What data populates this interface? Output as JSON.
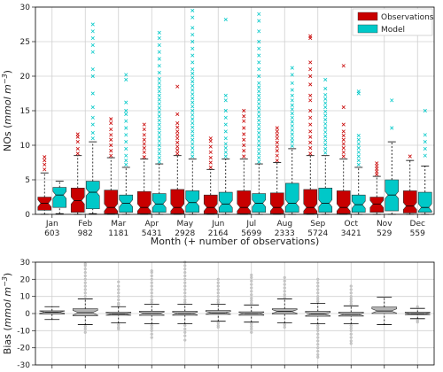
{
  "chart_data": [
    {
      "type": "box",
      "xlabel": "Month (+ number of observations)",
      "ylabel": "NOs (mmol m^-3)",
      "ylim": [
        0,
        30
      ],
      "yticks": [
        0,
        5,
        10,
        15,
        20,
        25,
        30
      ],
      "grid": true,
      "legend": "top-right",
      "categories": [
        "Jan",
        "Feb",
        "Mar",
        "Apr",
        "May",
        "Jun",
        "Jul",
        "Aug",
        "Sep",
        "Oct",
        "Nov",
        "Dec"
      ],
      "counts": [
        "603",
        "982",
        "1181",
        "5431",
        "2928",
        "2164",
        "5699",
        "2333",
        "5724",
        "3421",
        "529",
        "559"
      ],
      "series": [
        {
          "name": "Observations",
          "color": "#c80000",
          "boxes": [
            {
              "whislo": 0,
              "q1": 0.6,
              "med": 1.6,
              "q3": 2.5,
              "whishi": 6.0,
              "fliers": [
                6.5,
                7.2,
                7.8,
                8.3
              ]
            },
            {
              "whislo": 0,
              "q1": 0.3,
              "med": 2.0,
              "q3": 3.8,
              "whishi": 8.5,
              "fliers": [
                8.8,
                9.5,
                10.5,
                11.2,
                11.6
              ]
            },
            {
              "whislo": 0,
              "q1": 0.1,
              "med": 1.0,
              "q3": 3.5,
              "whishi": 8.2,
              "fliers": [
                8.5,
                9.2,
                10.0,
                10.8,
                11.5,
                12.3,
                13.2,
                13.8
              ]
            },
            {
              "whislo": 0,
              "q1": 0.1,
              "med": 1.0,
              "q3": 3.3,
              "whishi": 8.0,
              "fliers": [
                8.3,
                9.0,
                9.6,
                10.2,
                10.8,
                11.5,
                12.3,
                13.0
              ]
            },
            {
              "whislo": 0,
              "q1": 0.1,
              "med": 1.0,
              "q3": 3.6,
              "whishi": 8.5,
              "fliers": [
                8.8,
                9.3,
                9.8,
                10.4,
                11.0,
                11.5,
                12.0,
                12.6,
                13.2,
                14.5,
                18.5
              ]
            },
            {
              "whislo": 0,
              "q1": 0.1,
              "med": 1.0,
              "q3": 2.8,
              "whishi": 6.5,
              "fliers": [
                6.8,
                7.5,
                8.2,
                9.0,
                9.8,
                10.6,
                11.0
              ]
            },
            {
              "whislo": 0,
              "q1": 0.1,
              "med": 1.0,
              "q3": 3.4,
              "whishi": 8.0,
              "fliers": [
                8.4,
                9.2,
                10.0,
                10.8,
                11.6,
                12.5,
                13.5,
                14.2,
                15.0
              ]
            },
            {
              "whislo": 0,
              "q1": 0.1,
              "med": 1.0,
              "q3": 3.1,
              "whishi": 7.5,
              "fliers": [
                7.8,
                8.5,
                9.2,
                9.8,
                10.4,
                11.0,
                11.5,
                12.0,
                12.5
              ]
            },
            {
              "whislo": 0,
              "q1": 0.1,
              "med": 1.0,
              "q3": 3.6,
              "whishi": 8.5,
              "fliers": [
                8.8,
                9.6,
                10.4,
                11.2,
                12.0,
                13.0,
                14.0,
                15.0,
                16.5,
                17.2,
                18.8,
                20.0,
                21.0,
                22.0,
                25.5,
                25.8
              ]
            },
            {
              "whislo": 0,
              "q1": 0.1,
              "med": 1.0,
              "q3": 3.4,
              "whishi": 8.0,
              "fliers": [
                8.4,
                9.0,
                9.6,
                10.2,
                10.8,
                11.4,
                12.0,
                13.0,
                15.5,
                21.5
              ]
            },
            {
              "whislo": 0,
              "q1": 0.3,
              "med": 1.5,
              "q3": 2.5,
              "whishi": 5.5,
              "fliers": [
                5.8,
                6.2,
                6.6,
                7.0,
                7.4
              ]
            },
            {
              "whislo": 0,
              "q1": 0.2,
              "med": 1.2,
              "q3": 3.4,
              "whishi": 7.8,
              "fliers": [
                8.4
              ]
            }
          ]
        },
        {
          "name": "Model",
          "color": "#00c8c8",
          "boxes": [
            {
              "whislo": 0.1,
              "q1": 1.0,
              "med": 2.8,
              "q3": 3.9,
              "whishi": 4.8,
              "fliers": []
            },
            {
              "whislo": 0.1,
              "q1": 0.8,
              "med": 3.2,
              "q3": 4.8,
              "whishi": 10.5,
              "fliers": [
                11.0,
                11.8,
                13.0,
                14.0,
                15.5,
                17.5,
                20.0,
                21.0,
                23.5,
                24.5,
                25.5,
                26.5,
                27.5
              ]
            },
            {
              "whislo": 0,
              "q1": 0.3,
              "med": 1.6,
              "q3": 2.8,
              "whishi": 6.8,
              "fliers": [
                7.2,
                7.8,
                8.5,
                9.5,
                10.5,
                11.5,
                12.5,
                13.5,
                14.5,
                15.0,
                16.2,
                19.5,
                20.2
              ]
            },
            {
              "whislo": 0,
              "q1": 0.3,
              "med": 1.5,
              "q3": 3.0,
              "whishi": 7.3,
              "fliers": [
                7.6,
                8.2,
                8.8,
                9.4,
                10.0,
                10.6,
                11.2,
                11.8,
                12.4,
                13.0,
                13.6,
                14.2,
                14.8,
                15.4,
                16.0,
                16.6,
                17.2,
                17.8,
                18.4,
                19.0,
                19.6,
                20.5,
                21.5,
                22.5,
                23.5,
                24.5,
                25.5,
                26.3
              ]
            },
            {
              "whislo": 0,
              "q1": 0.3,
              "med": 1.7,
              "q3": 3.4,
              "whishi": 8.0,
              "fliers": [
                8.4,
                9.0,
                9.6,
                10.2,
                10.8,
                11.4,
                12.0,
                12.6,
                13.2,
                13.8,
                14.4,
                15.0,
                15.6,
                16.2,
                16.8,
                17.4,
                18.0,
                18.6,
                19.2,
                19.8,
                20.4,
                21.0,
                22.0,
                23.0,
                24.0,
                25.0,
                26.0,
                27.0,
                28.5,
                29.5
              ]
            },
            {
              "whislo": 0,
              "q1": 0.3,
              "med": 1.5,
              "q3": 3.2,
              "whishi": 8.0,
              "fliers": [
                8.4,
                9.0,
                9.6,
                10.2,
                11.0,
                12.0,
                13.0,
                14.0,
                15.0,
                16.5,
                17.2,
                28.2
              ]
            },
            {
              "whislo": 0,
              "q1": 0.3,
              "med": 1.6,
              "q3": 3.0,
              "whishi": 7.3,
              "fliers": [
                7.6,
                8.2,
                8.8,
                9.4,
                10.0,
                10.6,
                11.2,
                11.8,
                12.4,
                13.0,
                13.6,
                14.2,
                14.8,
                15.4,
                16.0,
                16.6,
                17.2,
                17.8,
                18.4,
                19.0,
                20.0,
                21.0,
                22.0,
                23.0,
                24.0,
                25.0,
                26.5,
                28.0,
                29.0
              ]
            },
            {
              "whislo": 0,
              "q1": 0.3,
              "med": 1.6,
              "q3": 4.5,
              "whishi": 9.5,
              "fliers": [
                9.9,
                10.5,
                11.0,
                11.6,
                12.2,
                12.8,
                13.4,
                14.0,
                14.6,
                15.2,
                15.8,
                16.5,
                17.2,
                18.0,
                19.0,
                20.2,
                21.2
              ]
            },
            {
              "whislo": 0,
              "q1": 0.3,
              "med": 1.6,
              "q3": 3.8,
              "whishi": 8.5,
              "fliers": [
                8.9,
                9.5,
                10.1,
                10.7,
                11.3,
                11.9,
                12.5,
                13.1,
                13.7,
                14.3,
                14.9,
                15.5,
                16.1,
                16.7,
                17.3,
                18.2,
                19.5
              ]
            },
            {
              "whislo": 0,
              "q1": 0.3,
              "med": 1.4,
              "q3": 2.8,
              "whishi": 6.8,
              "fliers": [
                7.2,
                7.8,
                8.4,
                9.0,
                9.6,
                10.2,
                10.8,
                11.4,
                17.5,
                17.8
              ]
            },
            {
              "whislo": 0,
              "q1": 0.5,
              "med": 2.8,
              "q3": 5.0,
              "whishi": 10.5,
              "fliers": [
                12.5,
                16.5
              ]
            },
            {
              "whislo": 0,
              "q1": 0.3,
              "med": 1.0,
              "q3": 3.2,
              "whishi": 7.0,
              "fliers": [
                8.5,
                9.5,
                10.5,
                11.5,
                15.0
              ]
            }
          ]
        }
      ]
    },
    {
      "type": "box",
      "xlabel": "",
      "ylabel": "Bias (mmol m^-3)",
      "ylim": [
        -30,
        30
      ],
      "yticks": [
        -30,
        -20,
        -10,
        0,
        10,
        20,
        30
      ],
      "grid": true,
      "categories": [
        "Jan",
        "Feb",
        "Mar",
        "Apr",
        "May",
        "Jun",
        "Jul",
        "Aug",
        "Sep",
        "Oct",
        "Nov",
        "Dec"
      ],
      "series": [
        {
          "name": "",
          "color": "#b4b4b4",
          "boxes": [
            {
              "whislo": -3.5,
              "q1": -0.3,
              "med": 0.8,
              "q3": 1.6,
              "whishi": 4.0,
              "fliers": []
            },
            {
              "whislo": -6.5,
              "q1": -1.3,
              "med": 0.5,
              "q3": 2.8,
              "whishi": 8.5,
              "fliers": [
                -7.5,
                -9.0,
                -11.0,
                10.0,
                12.0,
                14.0,
                16.0,
                18.0,
                20.0,
                22.0,
                24.0,
                26.0,
                28.0,
                29.0
              ]
            },
            {
              "whislo": -5.5,
              "q1": -1.0,
              "med": -0.3,
              "q3": 0.8,
              "whishi": 4.0,
              "fliers": [
                -6.5,
                -8.0,
                -9.0,
                5.0,
                6.0,
                8.0,
                10.0,
                12.0,
                14.0,
                16.0,
                18.5
              ]
            },
            {
              "whislo": -6.0,
              "q1": -1.1,
              "med": 0.0,
              "q3": 1.4,
              "whishi": 5.5,
              "fliers": [
                -7.0,
                -8.5,
                -10.0,
                -12.0,
                -14.0,
                6.5,
                8.0,
                10.0,
                12.0,
                14.0,
                16.0,
                18.0,
                20.0,
                22.0,
                24.0,
                25.0
              ]
            },
            {
              "whislo": -6.0,
              "q1": -1.0,
              "med": 0.0,
              "q3": 1.3,
              "whishi": 5.5,
              "fliers": [
                -7.0,
                -9.0,
                -11.0,
                -13.0,
                -15.5,
                6.5,
                8.0,
                10.0,
                12.0,
                14.0,
                16.0,
                18.0,
                20.0,
                22.0,
                24.0,
                26.0,
                28.0,
                30.0
              ]
            },
            {
              "whislo": -4.5,
              "q1": -0.5,
              "med": 0.4,
              "q3": 1.8,
              "whishi": 5.5,
              "fliers": [
                -5.5,
                -7.0,
                -8.0,
                6.5,
                8.0,
                10.0,
                12.0,
                14.0,
                16.0,
                18.0,
                20.0
              ]
            },
            {
              "whislo": -5.0,
              "q1": -1.0,
              "med": 0.0,
              "q3": 1.0,
              "whishi": 5.0,
              "fliers": [
                -6.0,
                -7.5,
                -9.0,
                -11.0,
                6.0,
                7.5,
                9.0,
                11.0,
                13.0,
                15.0,
                17.0,
                19.0,
                21.0,
                22.5
              ]
            },
            {
              "whislo": -5.5,
              "q1": -0.3,
              "med": 1.2,
              "q3": 2.8,
              "whishi": 8.5,
              "fliers": [
                -6.5,
                -8.0,
                9.5,
                11.0,
                13.0,
                15.0,
                17.0,
                19.0,
                21.0
              ]
            },
            {
              "whislo": -6.0,
              "q1": -1.6,
              "med": -0.3,
              "q3": 1.3,
              "whishi": 6.0,
              "fliers": [
                -7.0,
                -8.5,
                -10.0,
                -12.0,
                -14.0,
                -16.0,
                -18.0,
                -20.0,
                -22.0,
                -24.0,
                -25.5,
                7.0,
                8.5,
                10.0,
                12.0,
                14.0,
                16.0,
                18.0,
                20.0
              ]
            },
            {
              "whislo": -6.0,
              "q1": -1.5,
              "med": -0.5,
              "q3": 0.8,
              "whishi": 4.5,
              "fliers": [
                -7.0,
                -8.5,
                -10.0,
                -12.0,
                -14.0,
                -16.0,
                -17.5,
                5.5,
                7.0,
                8.5,
                10.0,
                12.0,
                14.0,
                16.0
              ]
            },
            {
              "whislo": -6.5,
              "q1": 0.0,
              "med": 1.5,
              "q3": 3.8,
              "whishi": 9.5,
              "fliers": []
            },
            {
              "whislo": -3.0,
              "q1": -0.7,
              "med": -0.1,
              "q3": 0.8,
              "whishi": 3.0,
              "fliers": [
                -4.0,
                -5.0,
                4.0
              ]
            }
          ]
        }
      ]
    }
  ]
}
